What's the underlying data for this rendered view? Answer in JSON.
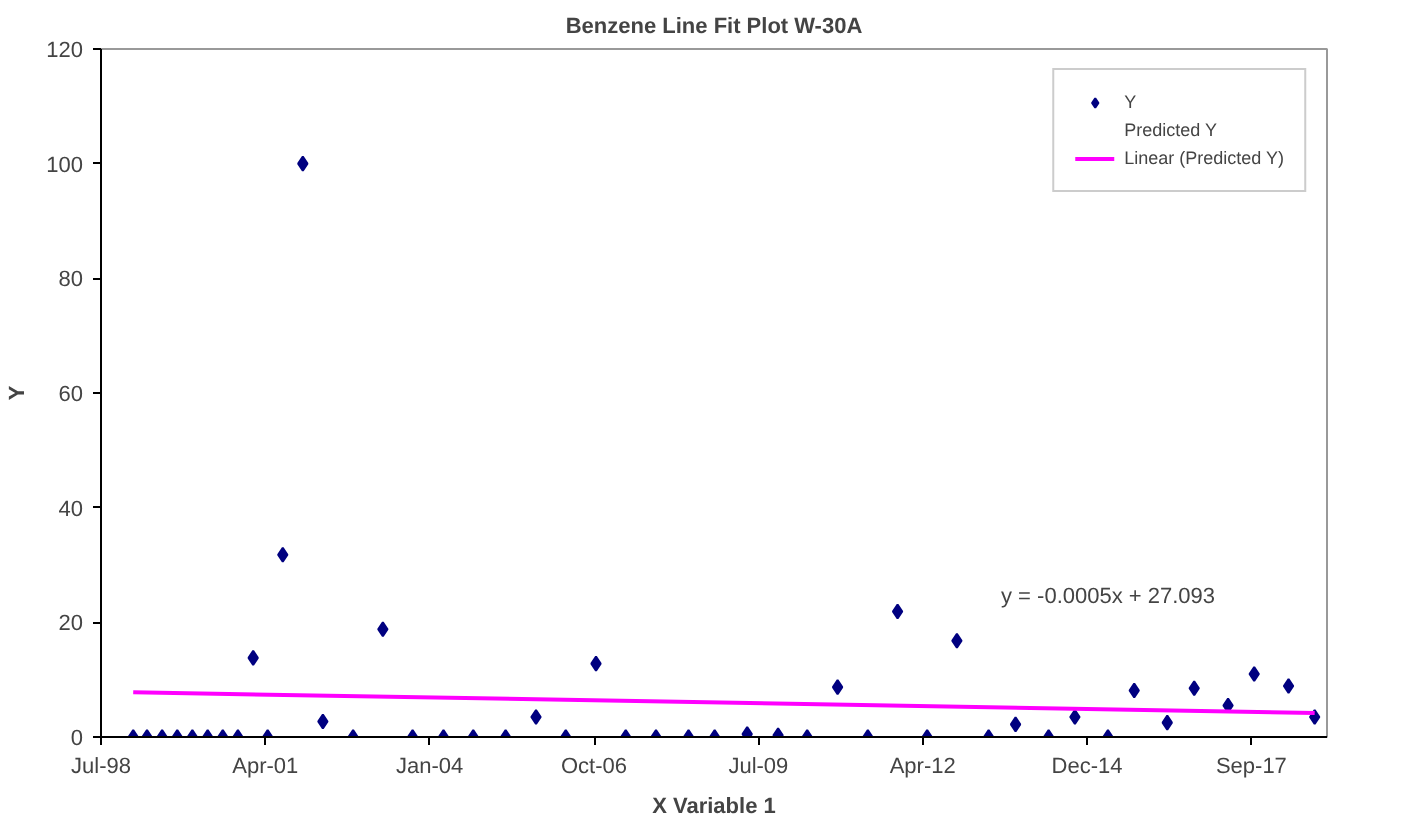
{
  "chart_data": {
    "type": "scatter",
    "title": "Benzene Line Fit Plot W-30A",
    "xlabel": "X Variable 1",
    "ylabel": "Y",
    "x": [
      "1999-02-05",
      "1999-04-30",
      "1999-07-31",
      "1999-10-31",
      "2000-01-31",
      "2000-05-03",
      "2000-08-03",
      "2000-11-03",
      "2001-02-04",
      "2001-05-03",
      "2001-08-03",
      "2001-12-03",
      "2002-04-04",
      "2002-10-05",
      "2003-04-04",
      "2003-10-02",
      "2004-04-07",
      "2004-10-05",
      "2005-04-20",
      "2005-10-22",
      "2006-04-21",
      "2006-10-22",
      "2007-04-21",
      "2007-10-22",
      "2008-05-07",
      "2008-10-13",
      "2009-04-29",
      "2009-11-03",
      "2010-04-29",
      "2010-10-31",
      "2011-05-03",
      "2011-10-31",
      "2012-04-28",
      "2012-10-26",
      "2013-05-07",
      "2013-10-18",
      "2014-05-07",
      "2014-10-14",
      "2015-05-03",
      "2015-10-10",
      "2016-04-28",
      "2016-10-09",
      "2017-05-03",
      "2017-10-09",
      "2018-05-06",
      "2018-10-12"
    ],
    "series": [
      {
        "name": "Y",
        "marker": "diamond",
        "color": "#000080",
        "values": [
          0,
          0,
          0,
          0,
          0,
          0,
          0,
          0,
          13.8,
          0,
          31.8,
          100,
          2.7,
          0,
          18.8,
          0,
          0,
          0,
          0,
          3.5,
          0,
          12.8,
          0,
          0,
          0,
          0,
          0.5,
          0.3,
          0,
          8.7,
          0,
          21.9,
          0,
          16.8,
          0,
          2.2,
          0,
          3.5,
          0,
          8.1,
          2.5,
          8.5,
          5.5,
          11,
          8.9,
          3.5
        ]
      },
      {
        "name": "Predicted Y",
        "type": "scatter",
        "marker": "none",
        "values": [
          null,
          null,
          null,
          null,
          null,
          null,
          null,
          null,
          null,
          null,
          null,
          null,
          null,
          null,
          null,
          null,
          null,
          null,
          null,
          null,
          null,
          null,
          null,
          null,
          null,
          null,
          null,
          null,
          null,
          null,
          null,
          null,
          null,
          null,
          null,
          null,
          null,
          null,
          null,
          null,
          null,
          null,
          null,
          null,
          null,
          null
        ]
      },
      {
        "name": "Linear (Predicted Y)",
        "type": "line",
        "line_style": "solid",
        "color": "#ff00ff",
        "x": [
          "1999-02-05",
          "2018-10-12"
        ],
        "values": [
          7.8,
          4.2
        ]
      }
    ],
    "annotations": [
      "y = -0.0005x + 27.093"
    ],
    "xlim": [
      "1998-07-24",
      "2018-12-26"
    ],
    "xticks": [
      {
        "value": "1998-07-24",
        "label": "Jul-98"
      },
      {
        "value": "2001-04-19",
        "label": "Apr-01"
      },
      {
        "value": "2004-01-14",
        "label": "Jan-04"
      },
      {
        "value": "2006-10-10",
        "label": "Oct-06"
      },
      {
        "value": "2009-07-06",
        "label": "Jul-09"
      },
      {
        "value": "2012-04-01",
        "label": "Apr-12"
      },
      {
        "value": "2014-12-27",
        "label": "Dec-14"
      },
      {
        "value": "2017-09-22",
        "label": "Sep-17"
      }
    ],
    "ylim": [
      0,
      120
    ],
    "yticks": [
      0,
      20,
      40,
      60,
      80,
      100,
      120
    ],
    "grid": false,
    "legend": "top right"
  }
}
